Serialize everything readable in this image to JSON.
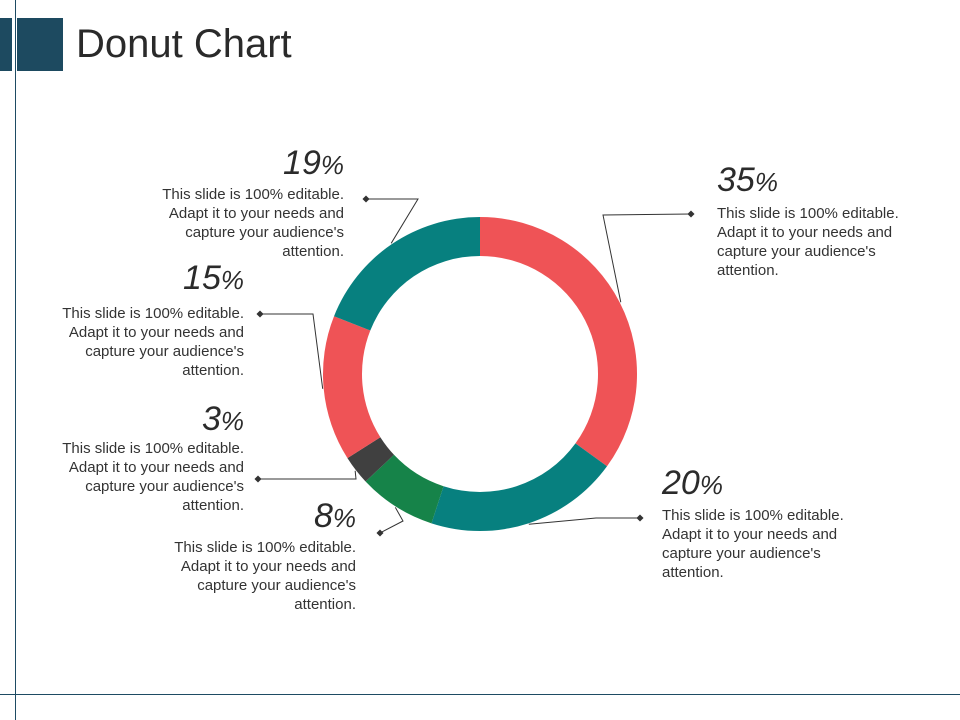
{
  "title": "Donut Chart",
  "colors": {
    "accent_dark": "#1d4a60",
    "red": "#ef5356",
    "teal": "#07807f",
    "green": "#168349",
    "dark_gray": "#404040",
    "leader": "#333333"
  },
  "chart_data": {
    "type": "pie",
    "variant": "donut",
    "title": "Donut Chart",
    "slices": [
      {
        "value": 35,
        "label": "35%",
        "sign": "%",
        "description": "This slide is 100% editable. Adapt it to your needs and capture your audience's attention.",
        "color": "#ef5356"
      },
      {
        "value": 20,
        "label": "20%",
        "sign": "%",
        "description": "This slide is 100% editable. Adapt it to your needs and capture your audience's attention.",
        "color": "#07807f"
      },
      {
        "value": 8,
        "label": "8%",
        "sign": "%",
        "description": "This slide is 100% editable. Adapt it to your needs and capture your audience's attention.",
        "color": "#168349"
      },
      {
        "value": 3,
        "label": "3%",
        "sign": "%",
        "description": "This slide is 100% editable. Adapt it to your needs and capture your audience's attention.",
        "color": "#404040"
      },
      {
        "value": 15,
        "label": "15%",
        "sign": "%",
        "description": "This slide is 100% editable. Adapt it to your needs and capture your audience's attention.",
        "color": "#ef5356"
      },
      {
        "value": 19,
        "label": "19%",
        "sign": "%",
        "description": "This slide is 100% editable. Adapt it to your needs and capture your audience's attention.",
        "color": "#07807f"
      }
    ]
  }
}
